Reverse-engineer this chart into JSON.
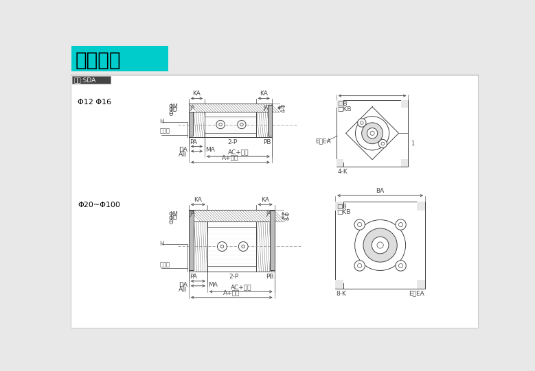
{
  "title": "外部尺寸",
  "title_bg": "#00CCCC",
  "model_label": "型號:SDA",
  "bg_color": "#E8E8E8",
  "main_bg": "#FFFFFF",
  "section1_label": "Φ12 Φ16",
  "section2_label": "Φ20~Φ100",
  "line_color": "#444444",
  "hatch_color": "#666666",
  "border_color": "#AAAAAA",
  "gray_fill": "#BBBBBB",
  "light_gray": "#DDDDDD"
}
